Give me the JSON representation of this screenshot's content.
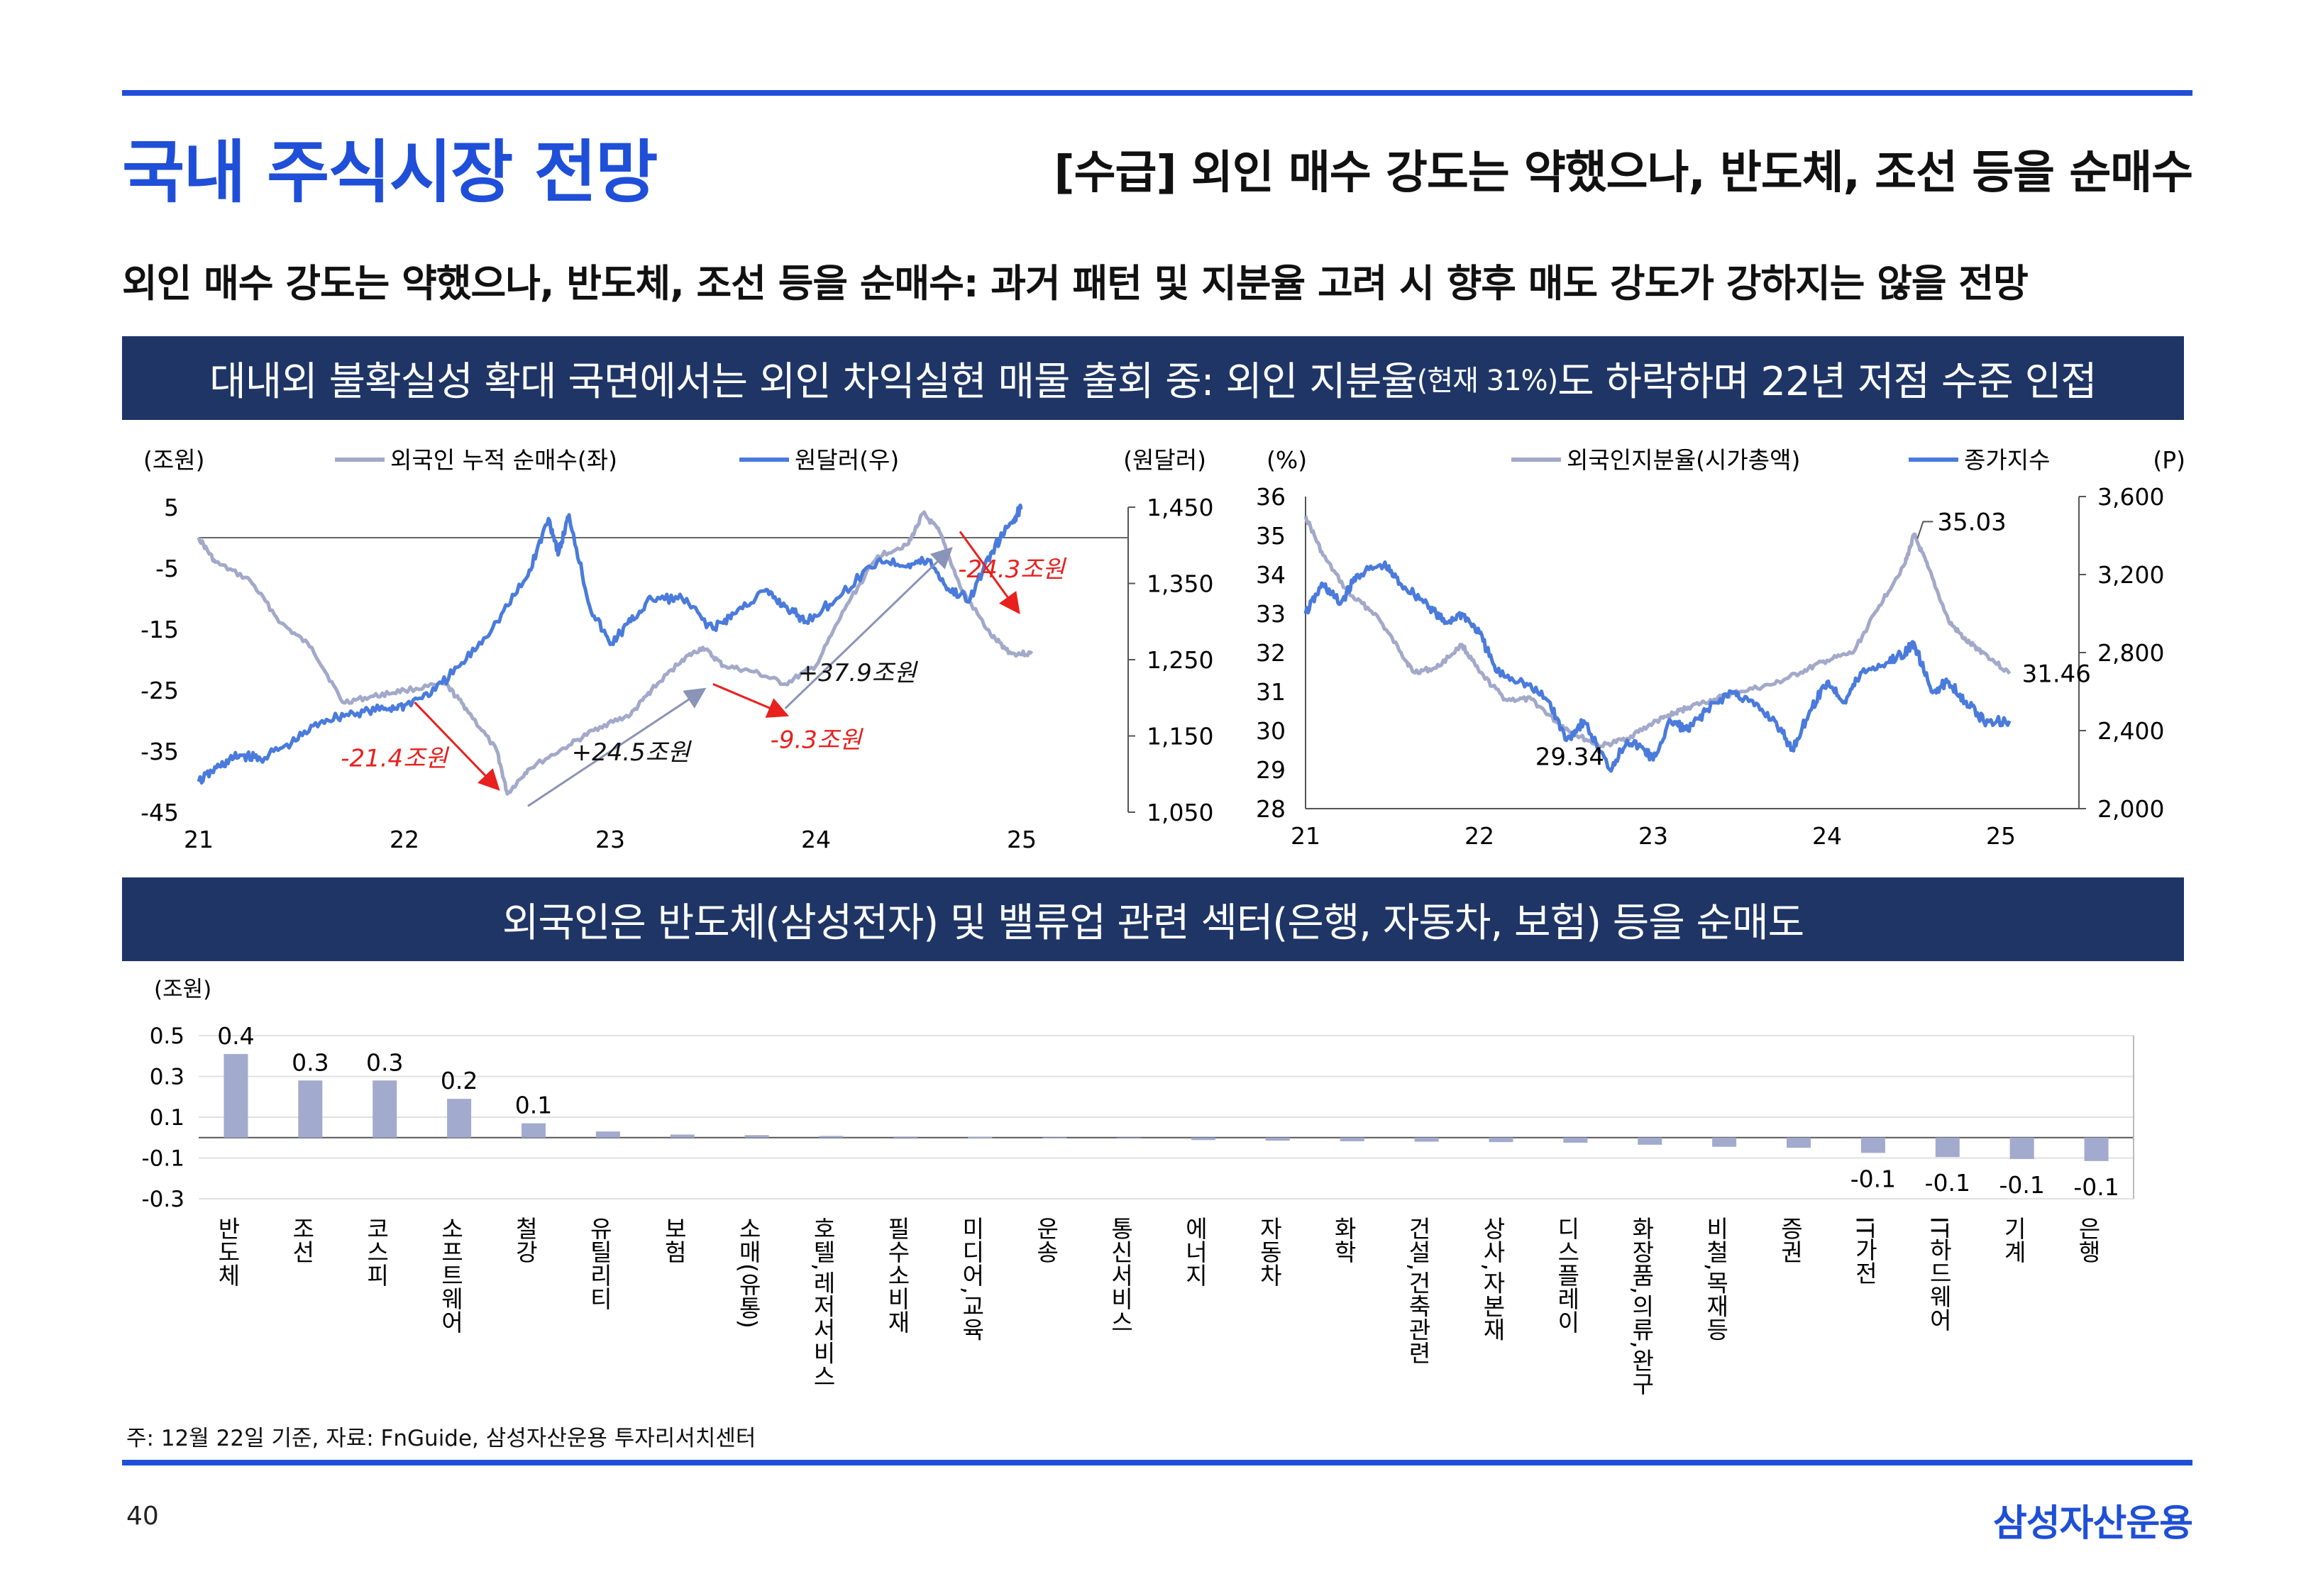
{
  "header": {
    "title": "국내 주식시장 전망",
    "subtitle": "[수급] 외인 매수 강도는 약했으나, 반도체, 조선 등을 순매수"
  },
  "summary": "외인 매수 강도는 약했으나, 반도체, 조선 등을 순매수: 과거 패턴 및 지분율 고려 시 향후 매도 강도가 강하지는 않을 전망",
  "banner1": {
    "part1": "대내외 불확실성 확대 국면에서는 외인 차익실현 매물 출회 중: 외인 지분율",
    "small": "(현재 31%)",
    "part2": "도 하락하며 22년 저점 수준 인접"
  },
  "banner2": "외국인은 반도체(삼성전자) 및 밸류업 관련 섹터(은행, 자동차, 보험) 등을 순매도",
  "colors": {
    "accent": "#1f4fd8",
    "banner": "#1e3566",
    "series_gray": "#a2a9c9",
    "series_blue": "#4a7bdc",
    "bar": "#a2aace",
    "annotation": "#e8201e"
  },
  "chart_data": [
    {
      "type": "line",
      "title": "",
      "left_unit": "(조원)",
      "right_unit": "(원달러)",
      "x_ticks": [
        "21",
        "22",
        "23",
        "24",
        "25"
      ],
      "x_range": [
        2021,
        2025
      ],
      "y_left": {
        "ticks": [
          "5",
          "-5",
          "-15",
          "-25",
          "-35",
          "-45"
        ],
        "range": [
          -45,
          5
        ]
      },
      "y_right": {
        "ticks": [
          "1,450",
          "1,350",
          "1,250",
          "1,150",
          "1,050"
        ],
        "range": [
          1050,
          1450
        ]
      },
      "series": [
        {
          "name": "외국인 누적 순매수(좌)",
          "axis": "left",
          "points": [
            [
              2021.0,
              0
            ],
            [
              2021.08,
              -4
            ],
            [
              2021.25,
              -7
            ],
            [
              2021.4,
              -14
            ],
            [
              2021.55,
              -18
            ],
            [
              2021.7,
              -27
            ],
            [
              2021.85,
              -26
            ],
            [
              2022.0,
              -25
            ],
            [
              2022.2,
              -24
            ],
            [
              2022.3,
              -28
            ],
            [
              2022.45,
              -35
            ],
            [
              2022.5,
              -42
            ],
            [
              2022.6,
              -38
            ],
            [
              2022.8,
              -34
            ],
            [
              2022.95,
              -31
            ],
            [
              2023.1,
              -29
            ],
            [
              2023.2,
              -25
            ],
            [
              2023.35,
              -20
            ],
            [
              2023.45,
              -18
            ],
            [
              2023.55,
              -21
            ],
            [
              2023.7,
              -22
            ],
            [
              2023.85,
              -24
            ],
            [
              2024.0,
              -21
            ],
            [
              2024.15,
              -11
            ],
            [
              2024.3,
              -3
            ],
            [
              2024.45,
              -1
            ],
            [
              2024.52,
              4
            ],
            [
              2024.6,
              1
            ],
            [
              2024.7,
              -8
            ],
            [
              2024.85,
              -16
            ],
            [
              2024.95,
              -19
            ],
            [
              2025.05,
              -19
            ]
          ]
        },
        {
          "name": "원달러(우)",
          "axis": "right",
          "points": [
            [
              2021.0,
              1090
            ],
            [
              2021.1,
              1110
            ],
            [
              2021.2,
              1125
            ],
            [
              2021.3,
              1120
            ],
            [
              2021.45,
              1140
            ],
            [
              2021.6,
              1170
            ],
            [
              2021.75,
              1180
            ],
            [
              2021.9,
              1185
            ],
            [
              2022.0,
              1190
            ],
            [
              2022.15,
              1210
            ],
            [
              2022.3,
              1250
            ],
            [
              2022.45,
              1300
            ],
            [
              2022.6,
              1360
            ],
            [
              2022.7,
              1435
            ],
            [
              2022.75,
              1390
            ],
            [
              2022.8,
              1440
            ],
            [
              2022.9,
              1320
            ],
            [
              2023.0,
              1270
            ],
            [
              2023.1,
              1300
            ],
            [
              2023.2,
              1330
            ],
            [
              2023.35,
              1330
            ],
            [
              2023.5,
              1290
            ],
            [
              2023.6,
              1310
            ],
            [
              2023.75,
              1340
            ],
            [
              2023.85,
              1320
            ],
            [
              2023.95,
              1300
            ],
            [
              2024.1,
              1330
            ],
            [
              2024.3,
              1380
            ],
            [
              2024.45,
              1375
            ],
            [
              2024.55,
              1380
            ],
            [
              2024.65,
              1340
            ],
            [
              2024.75,
              1330
            ],
            [
              2024.85,
              1390
            ],
            [
              2024.95,
              1430
            ],
            [
              2025.0,
              1450
            ]
          ]
        }
      ],
      "annotations": [
        {
          "text": "-21.4조원",
          "color": "red",
          "at": [
            2021.95,
            -37.5
          ]
        },
        {
          "text": "+24.5조원",
          "color": "black",
          "at": [
            2023.1,
            -36.5
          ]
        },
        {
          "text": "-9.3조원",
          "color": "red",
          "at": [
            2024.0,
            -34.5
          ]
        },
        {
          "text": "+37.9조원",
          "color": "black",
          "at": [
            2024.2,
            -23.5
          ]
        },
        {
          "text": "-24.3조원",
          "color": "red",
          "at": [
            2024.95,
            -6.5
          ]
        }
      ]
    },
    {
      "type": "line",
      "title": "",
      "left_unit": "(%)",
      "right_unit": "(P)",
      "x_ticks": [
        "21",
        "22",
        "23",
        "24",
        "25"
      ],
      "x_range": [
        2021,
        2025
      ],
      "y_left": {
        "ticks": [
          "36",
          "35",
          "34",
          "33",
          "32",
          "31",
          "30",
          "29",
          "28"
        ],
        "range": [
          28,
          36
        ]
      },
      "y_right": {
        "ticks": [
          "3,600",
          "3,200",
          "2,800",
          "2,400",
          "2,000"
        ],
        "range": [
          2000,
          3600
        ]
      },
      "series": [
        {
          "name": "외국인지분율(시가총액)",
          "axis": "left",
          "points": [
            [
              2021.0,
              35.5
            ],
            [
              2021.1,
              34.5
            ],
            [
              2021.25,
              33.5
            ],
            [
              2021.4,
              33.0
            ],
            [
              2021.55,
              32.0
            ],
            [
              2021.62,
              31.5
            ],
            [
              2021.75,
              31.6
            ],
            [
              2021.9,
              32.2
            ],
            [
              2022.0,
              31.5
            ],
            [
              2022.15,
              30.8
            ],
            [
              2022.3,
              30.8
            ],
            [
              2022.45,
              30.2
            ],
            [
              2022.55,
              29.9
            ],
            [
              2022.7,
              29.6
            ],
            [
              2022.85,
              29.8
            ],
            [
              2023.0,
              30.2
            ],
            [
              2023.1,
              30.4
            ],
            [
              2023.2,
              30.6
            ],
            [
              2023.35,
              30.8
            ],
            [
              2023.5,
              31.0
            ],
            [
              2023.7,
              31.2
            ],
            [
              2023.85,
              31.5
            ],
            [
              2024.0,
              31.8
            ],
            [
              2024.15,
              32.0
            ],
            [
              2024.3,
              33.2
            ],
            [
              2024.45,
              34.3
            ],
            [
              2024.5,
              35.03
            ],
            [
              2024.58,
              34.2
            ],
            [
              2024.7,
              32.8
            ],
            [
              2024.8,
              32.3
            ],
            [
              2024.9,
              32.0
            ],
            [
              2025.05,
              31.46
            ]
          ]
        },
        {
          "name": "종가지수",
          "axis": "right",
          "points": [
            [
              2021.0,
              3000
            ],
            [
              2021.1,
              3150
            ],
            [
              2021.2,
              3050
            ],
            [
              2021.3,
              3200
            ],
            [
              2021.45,
              3250
            ],
            [
              2021.55,
              3150
            ],
            [
              2021.7,
              3050
            ],
            [
              2021.8,
              2950
            ],
            [
              2021.9,
              3000
            ],
            [
              2022.0,
              2900
            ],
            [
              2022.1,
              2700
            ],
            [
              2022.25,
              2650
            ],
            [
              2022.4,
              2550
            ],
            [
              2022.5,
              2350
            ],
            [
              2022.6,
              2450
            ],
            [
              2022.75,
              2200
            ],
            [
              2022.85,
              2350
            ],
            [
              2022.95,
              2300
            ],
            [
              2023.0,
              2250
            ],
            [
              2023.1,
              2450
            ],
            [
              2023.2,
              2400
            ],
            [
              2023.3,
              2500
            ],
            [
              2023.45,
              2600
            ],
            [
              2023.55,
              2550
            ],
            [
              2023.7,
              2450
            ],
            [
              2023.8,
              2300
            ],
            [
              2023.9,
              2500
            ],
            [
              2024.0,
              2650
            ],
            [
              2024.1,
              2550
            ],
            [
              2024.2,
              2700
            ],
            [
              2024.35,
              2750
            ],
            [
              2024.45,
              2800
            ],
            [
              2024.5,
              2850
            ],
            [
              2024.6,
              2600
            ],
            [
              2024.7,
              2650
            ],
            [
              2024.8,
              2550
            ],
            [
              2024.9,
              2450
            ],
            [
              2025.05,
              2450
            ]
          ]
        }
      ],
      "annotations": [
        {
          "text": "35.03",
          "at": [
            2024.52,
            35.03
          ]
        },
        {
          "text": "31.46",
          "at": [
            2025.08,
            31.46
          ]
        },
        {
          "text": "29.34",
          "at": [
            2022.52,
            29.34
          ]
        }
      ]
    },
    {
      "type": "bar",
      "title": "",
      "unit": "(조원)",
      "y_ticks": [
        "0.5",
        "0.3",
        "0.1",
        "-0.1",
        "-0.3"
      ],
      "ylim": [
        -0.3,
        0.5
      ],
      "categories": [
        "반도체",
        "조선",
        "코스피",
        "소프트웨어",
        "철강",
        "유틸리티",
        "보험",
        "소매(유통)",
        "호텔,레저서비스",
        "필수소비재",
        "미디어,교육",
        "운송",
        "통신서비스",
        "에너지",
        "자동차",
        "화학",
        "건설,건축관련",
        "상사,자본재",
        "디스플레이",
        "화장품,의류,완구",
        "비철,목재등",
        "증권",
        "IT가전",
        "IT하드웨어",
        "기계",
        "은행"
      ],
      "values": [
        0.41,
        0.28,
        0.28,
        0.19,
        0.07,
        0.03,
        0.015,
        0.012,
        0.008,
        0.005,
        0.003,
        0.001,
        -0.001,
        -0.012,
        -0.015,
        -0.018,
        -0.02,
        -0.022,
        -0.025,
        -0.035,
        -0.045,
        -0.05,
        -0.075,
        -0.095,
        -0.105,
        -0.115
      ],
      "labels": [
        "0.4",
        "0.3",
        "0.3",
        "0.2",
        "0.1",
        "",
        "",
        "",
        "",
        "",
        "",
        "",
        "",
        "",
        "",
        "",
        "",
        "",
        "",
        "",
        "",
        "",
        "-0.1",
        "-0.1",
        "-0.1",
        "-0.1"
      ]
    }
  ],
  "footnote": "주: 12월 22일 기준, 자료: FnGuide, 삼성자산운용 투자리서치센터",
  "page_number": "40",
  "brand": "삼성자산운용"
}
